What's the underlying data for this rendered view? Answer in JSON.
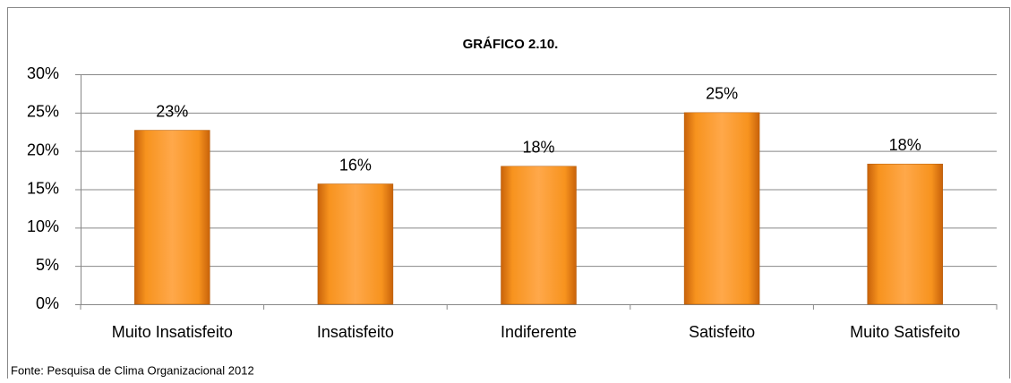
{
  "chart_data": {
    "type": "bar",
    "title": "GRÁFICO 2.10.",
    "categories": [
      "Muito Insatisfeito",
      "Insatisfeito",
      "Indiferente",
      "Satisfeito",
      "Muito Satisfeito"
    ],
    "values": [
      22.7,
      15.7,
      18.0,
      25.0,
      18.3
    ],
    "value_labels": [
      "23%",
      "16%",
      "18%",
      "25%",
      "18%"
    ],
    "color": "#f7931e",
    "ylim": [
      0,
      30
    ],
    "yticks": [
      {
        "value": 0,
        "label": "0%"
      },
      {
        "value": 5,
        "label": "5%"
      },
      {
        "value": 10,
        "label": "10%"
      },
      {
        "value": 15,
        "label": "15%"
      },
      {
        "value": 20,
        "label": "20%"
      },
      {
        "value": 25,
        "label": "25%"
      },
      {
        "value": 30,
        "label": "30%"
      }
    ],
    "grid": true,
    "source": "Fonte: Pesquisa de Clima Organizacional 2012"
  }
}
